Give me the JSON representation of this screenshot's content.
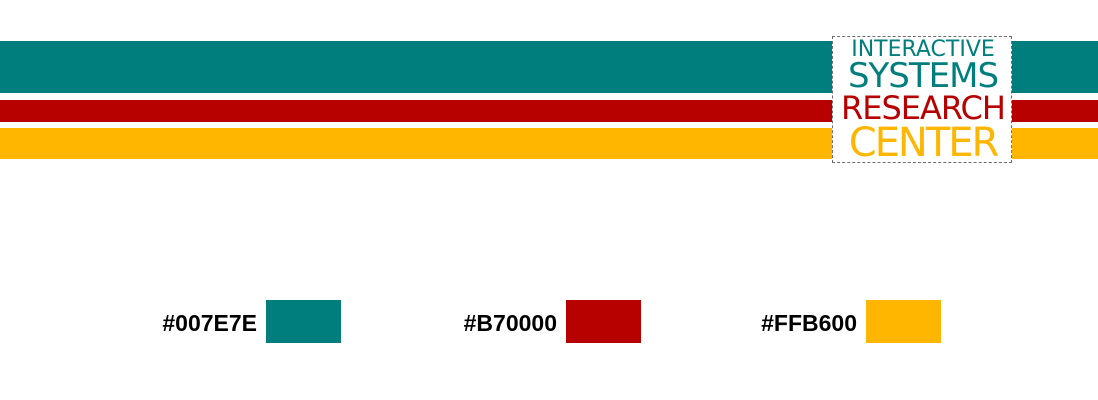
{
  "colors": {
    "teal": "#007E7E",
    "red": "#B70000",
    "yellow": "#FFB600"
  },
  "logo": {
    "line1": "INTERACTIVE",
    "line2": "SYSTEMS",
    "line3": "RESEARCH",
    "line4": "CENTER"
  },
  "swatches": [
    {
      "label": "#007E7E",
      "color": "#007E7E"
    },
    {
      "label": "#B70000",
      "color": "#B70000"
    },
    {
      "label": "#FFB600",
      "color": "#FFB600"
    }
  ]
}
